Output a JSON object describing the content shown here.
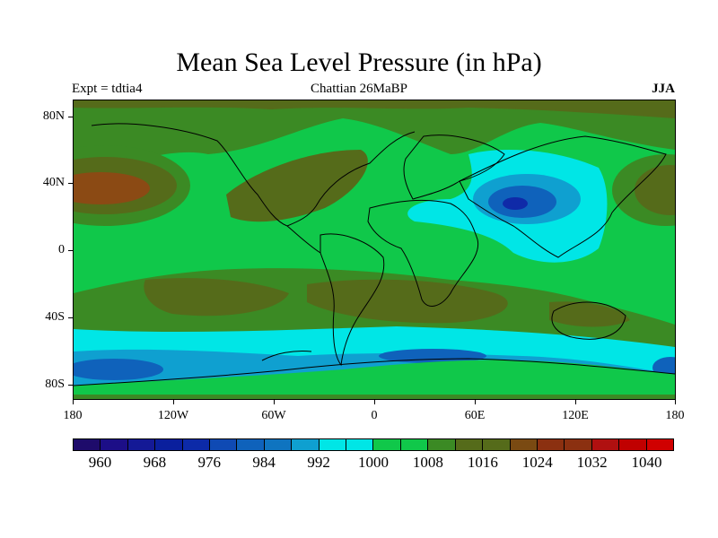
{
  "title": "Mean Sea Level Pressure (in hPa)",
  "subtitle_left": "Expt = tdtia4",
  "subtitle_center": "Chattian  26MaBP",
  "subtitle_right": "JJA",
  "lat_labels": [
    "80N",
    "40N",
    "0",
    "40S",
    "80S"
  ],
  "lon_labels": [
    "180",
    "120W",
    "60W",
    "0",
    "60E",
    "120E",
    "180"
  ],
  "colorbar": {
    "colors": [
      "#1e0b6b",
      "#1c0e87",
      "#141996",
      "#0a1f9d",
      "#0c2aa8",
      "#0f4ab4",
      "#0f62bb",
      "#0f74c0",
      "#0fa0d0",
      "#00e6e6",
      "#00e6e6",
      "#10c84a",
      "#10c84a",
      "#3b8a24",
      "#556b1a",
      "#556b1a",
      "#7a4a12",
      "#8b3010",
      "#8b3010",
      "#b01010",
      "#c00000",
      "#d00000"
    ],
    "labels": [
      "960",
      "968",
      "976",
      "984",
      "992",
      "1000",
      "1008",
      "1016",
      "1024",
      "1032",
      "1040"
    ]
  },
  "palette": {
    "high_brown": "#8b4a14",
    "olive_dark": "#556b1a",
    "olive": "#3b8a24",
    "green": "#10c84a",
    "cyan": "#00e6e6",
    "cyan_blue": "#0fa0d0",
    "blue": "#0f62bb",
    "deep_blue": "#0f2aa8"
  }
}
